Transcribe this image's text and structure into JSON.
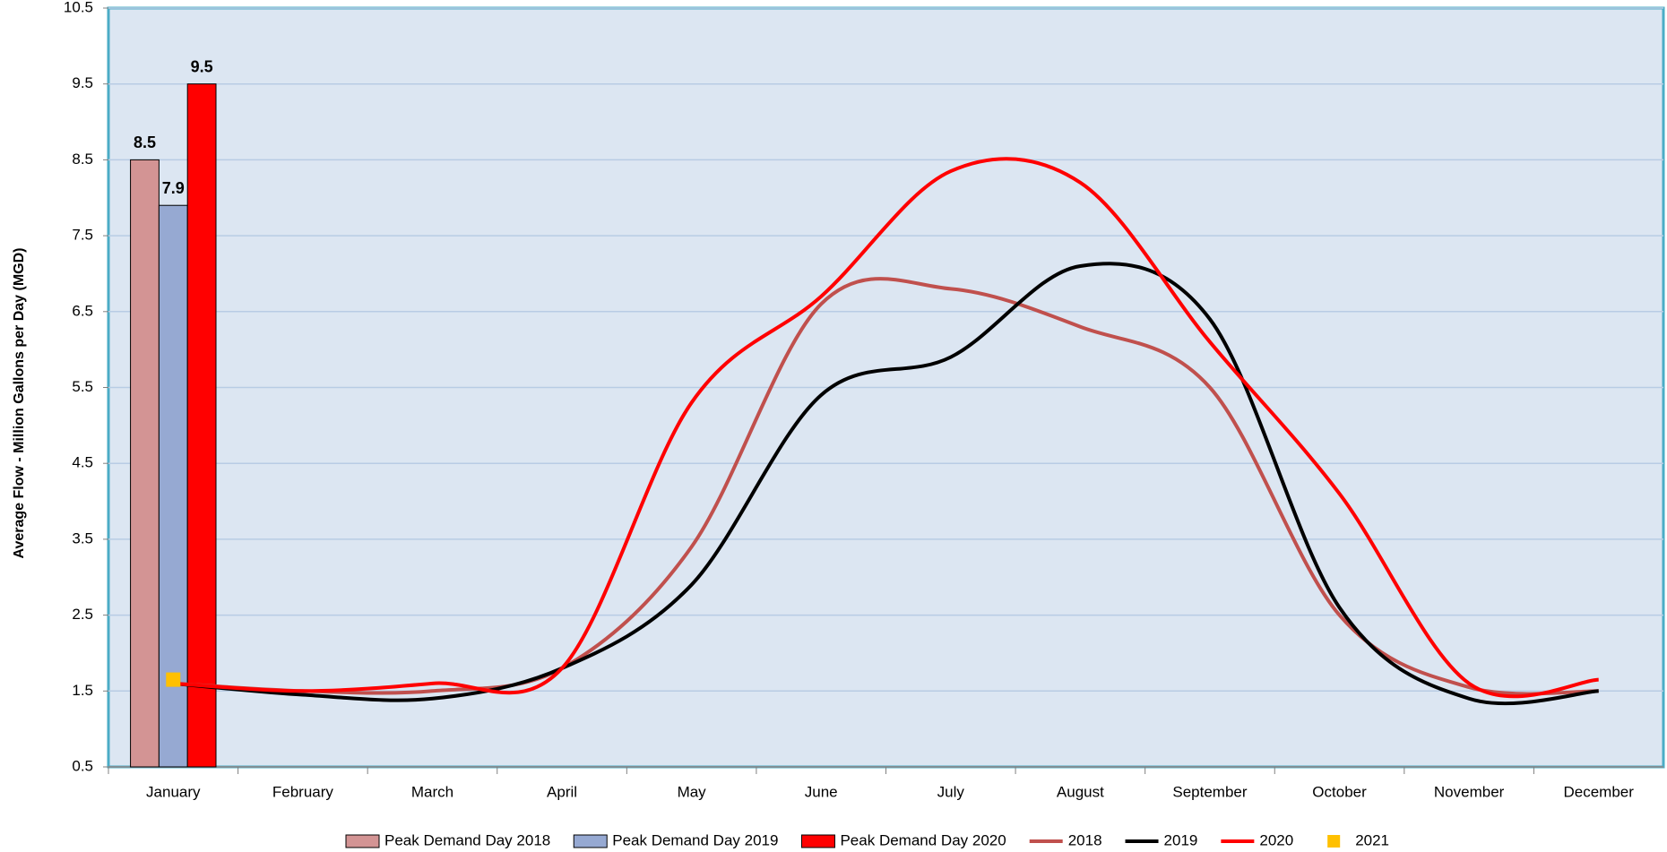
{
  "chart_data": {
    "type": "combo",
    "y_label": "Average Flow - Million Gallons per Day (MGD)",
    "categories": [
      "January",
      "February",
      "March",
      "April",
      "May",
      "June",
      "July",
      "August",
      "September",
      "October",
      "November",
      "December"
    ],
    "ylim": [
      0.5,
      10.5
    ],
    "yticks": [
      0.5,
      1.5,
      2.5,
      3.5,
      4.5,
      5.5,
      6.5,
      7.5,
      8.5,
      9.5,
      10.5
    ],
    "grid": true,
    "legend": "bottom",
    "series": [
      {
        "name": "Peak Demand Day 2018",
        "type": "bar",
        "color": "#d39494",
        "values": [
          8.5,
          null,
          null,
          null,
          null,
          null,
          null,
          null,
          null,
          null,
          null,
          null
        ]
      },
      {
        "name": "Peak Demand Day 2019",
        "type": "bar",
        "color": "#96a9d2",
        "values": [
          7.9,
          null,
          null,
          null,
          null,
          null,
          null,
          null,
          null,
          null,
          null,
          null
        ]
      },
      {
        "name": "Peak Demand Day 2020",
        "type": "bar",
        "color": "#ff0000",
        "values": [
          9.5,
          null,
          null,
          null,
          null,
          null,
          null,
          null,
          null,
          null,
          null,
          null
        ]
      },
      {
        "name": "2018",
        "type": "line",
        "color": "#c0504d",
        "values": [
          1.6,
          1.5,
          1.5,
          1.8,
          3.4,
          6.6,
          6.8,
          6.3,
          5.5,
          2.5,
          1.55,
          1.5
        ]
      },
      {
        "name": "2019",
        "type": "line",
        "color": "#000000",
        "values": [
          1.6,
          1.45,
          1.4,
          1.8,
          2.9,
          5.4,
          5.9,
          7.1,
          6.4,
          2.6,
          1.4,
          1.5
        ]
      },
      {
        "name": "2020",
        "type": "line",
        "color": "#ff0000",
        "values": [
          1.6,
          1.5,
          1.6,
          1.8,
          5.3,
          6.7,
          8.35,
          8.2,
          6.1,
          4.1,
          1.6,
          1.65
        ]
      },
      {
        "name": "2021",
        "type": "scatter",
        "color": "#ffc000",
        "values": [
          1.65,
          null,
          null,
          null,
          null,
          null,
          null,
          null,
          null,
          null,
          null,
          null
        ]
      }
    ]
  }
}
